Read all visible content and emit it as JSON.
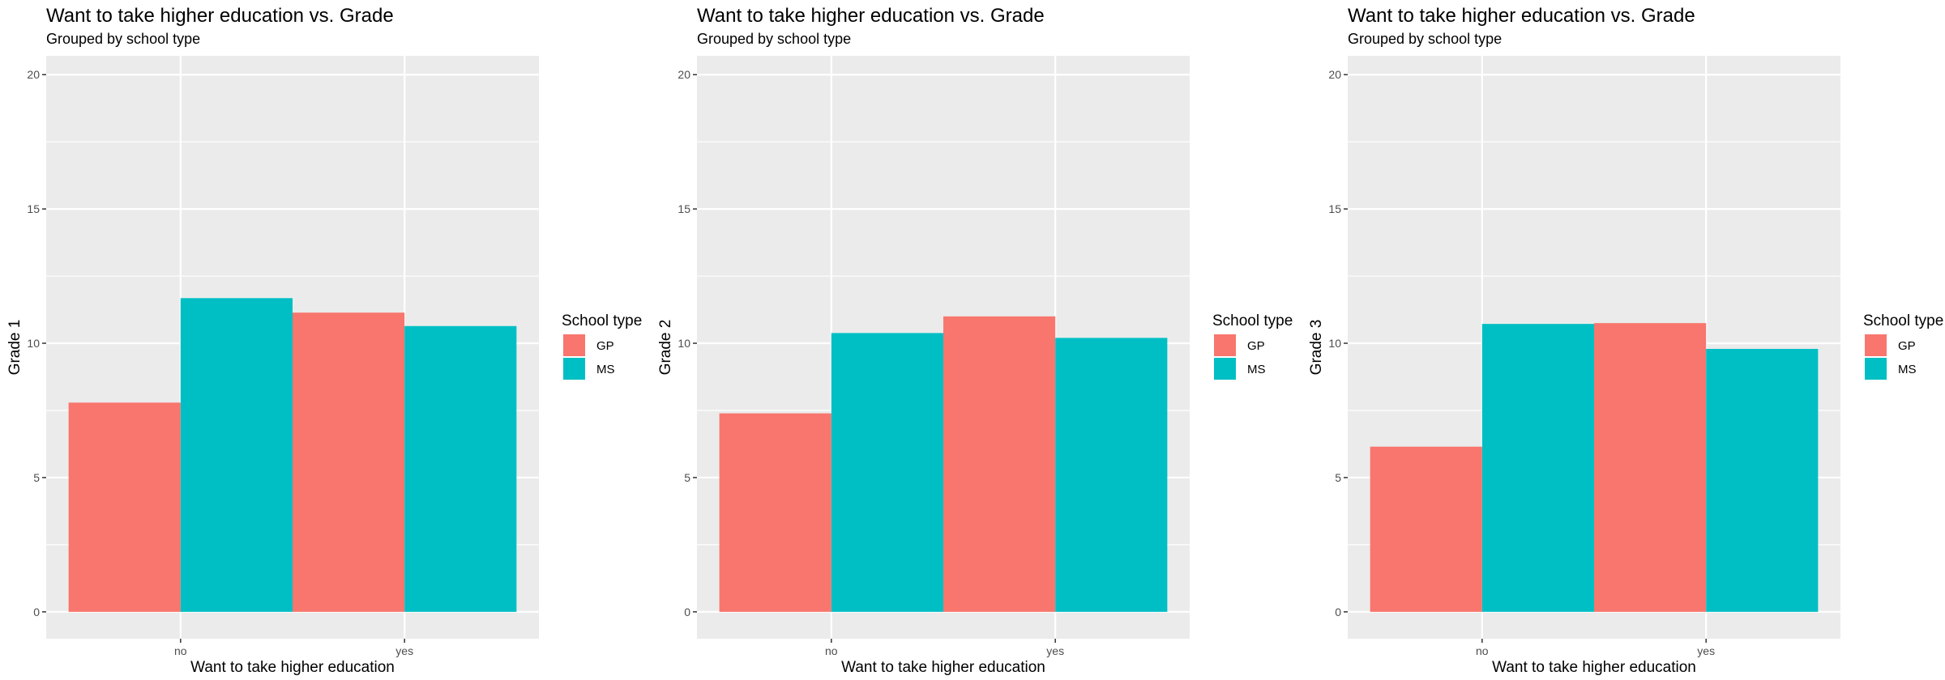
{
  "chart_data": [
    {
      "type": "bar",
      "title": "Want to take higher education vs. Grade",
      "subtitle": "Grouped by school type",
      "xlabel": "Want to take higher education",
      "ylabel": "Grade 1",
      "categories": [
        "no",
        "yes"
      ],
      "ylim": [
        -1,
        20.7
      ],
      "yticks": [
        0,
        5,
        10,
        15,
        20
      ],
      "legend_title": "School type",
      "legend_position": "right",
      "grid": true,
      "series": [
        {
          "name": "GP",
          "color": "#F8766D",
          "values": [
            7.79,
            11.14
          ]
        },
        {
          "name": "MS",
          "color": "#00BFC4",
          "values": [
            11.68,
            10.64
          ]
        }
      ]
    },
    {
      "type": "bar",
      "title": "Want to take higher education vs. Grade",
      "subtitle": "Grouped by school type",
      "xlabel": "Want to take higher education",
      "ylabel": "Grade 2",
      "categories": [
        "no",
        "yes"
      ],
      "ylim": [
        -1,
        20.7
      ],
      "yticks": [
        0,
        5,
        10,
        15,
        20
      ],
      "legend_title": "School type",
      "legend_position": "right",
      "grid": true,
      "series": [
        {
          "name": "GP",
          "color": "#F8766D",
          "values": [
            7.39,
            11.0
          ]
        },
        {
          "name": "MS",
          "color": "#00BFC4",
          "values": [
            10.38,
            10.2
          ]
        }
      ]
    },
    {
      "type": "bar",
      "title": "Want to take higher education vs. Grade",
      "subtitle": "Grouped by school type",
      "xlabel": "Want to take higher education",
      "ylabel": "Grade 3",
      "categories": [
        "no",
        "yes"
      ],
      "ylim": [
        -1,
        20.7
      ],
      "yticks": [
        0,
        5,
        10,
        15,
        20
      ],
      "legend_title": "School type",
      "legend_position": "right",
      "grid": true,
      "series": [
        {
          "name": "GP",
          "color": "#F8766D",
          "values": [
            6.15,
            10.75
          ]
        },
        {
          "name": "MS",
          "color": "#00BFC4",
          "values": [
            10.72,
            9.79
          ]
        }
      ]
    }
  ]
}
